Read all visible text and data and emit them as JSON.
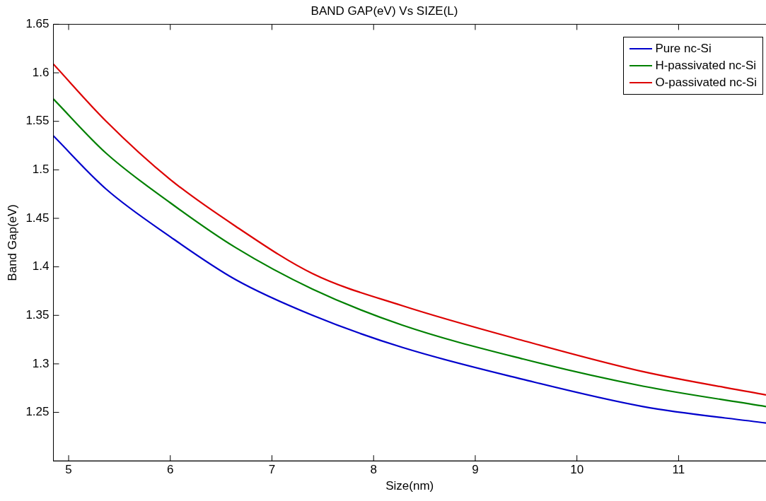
{
  "chart_data": {
    "type": "line",
    "title": "BAND GAP(eV) Vs SIZE(L)",
    "xlabel": "Size(nm)",
    "ylabel": "Band Gap(eV)",
    "x": [
      4.85,
      5.37,
      6.0,
      6.64,
      7.4,
      8.28,
      9.47,
      10.65,
      11.86
    ],
    "series": [
      {
        "name": "Pure nc-Si",
        "color": "#0000cc",
        "values": [
          1.535,
          1.48,
          1.431,
          1.387,
          1.35,
          1.317,
          1.284,
          1.256,
          1.239
        ]
      },
      {
        "name": "H-passivated nc-Si",
        "color": "#008000",
        "values": [
          1.573,
          1.517,
          1.466,
          1.42,
          1.377,
          1.34,
          1.305,
          1.277,
          1.256
        ]
      },
      {
        "name": "O-passivated nc-Si",
        "color": "#dd0000",
        "values": [
          1.609,
          1.55,
          1.49,
          1.442,
          1.393,
          1.36,
          1.324,
          1.292,
          1.268
        ]
      }
    ],
    "xlim": [
      4.85,
      11.86
    ],
    "xticks": [
      5,
      6,
      7,
      8,
      9,
      10,
      11
    ],
    "ylim": [
      1.2,
      1.65
    ],
    "yticks": [
      1.25,
      1.3,
      1.35,
      1.4,
      1.45,
      1.5,
      1.55,
      1.6,
      1.65
    ],
    "grid": false,
    "legend": "top right",
    "marker": "none",
    "line_style": "solid"
  }
}
